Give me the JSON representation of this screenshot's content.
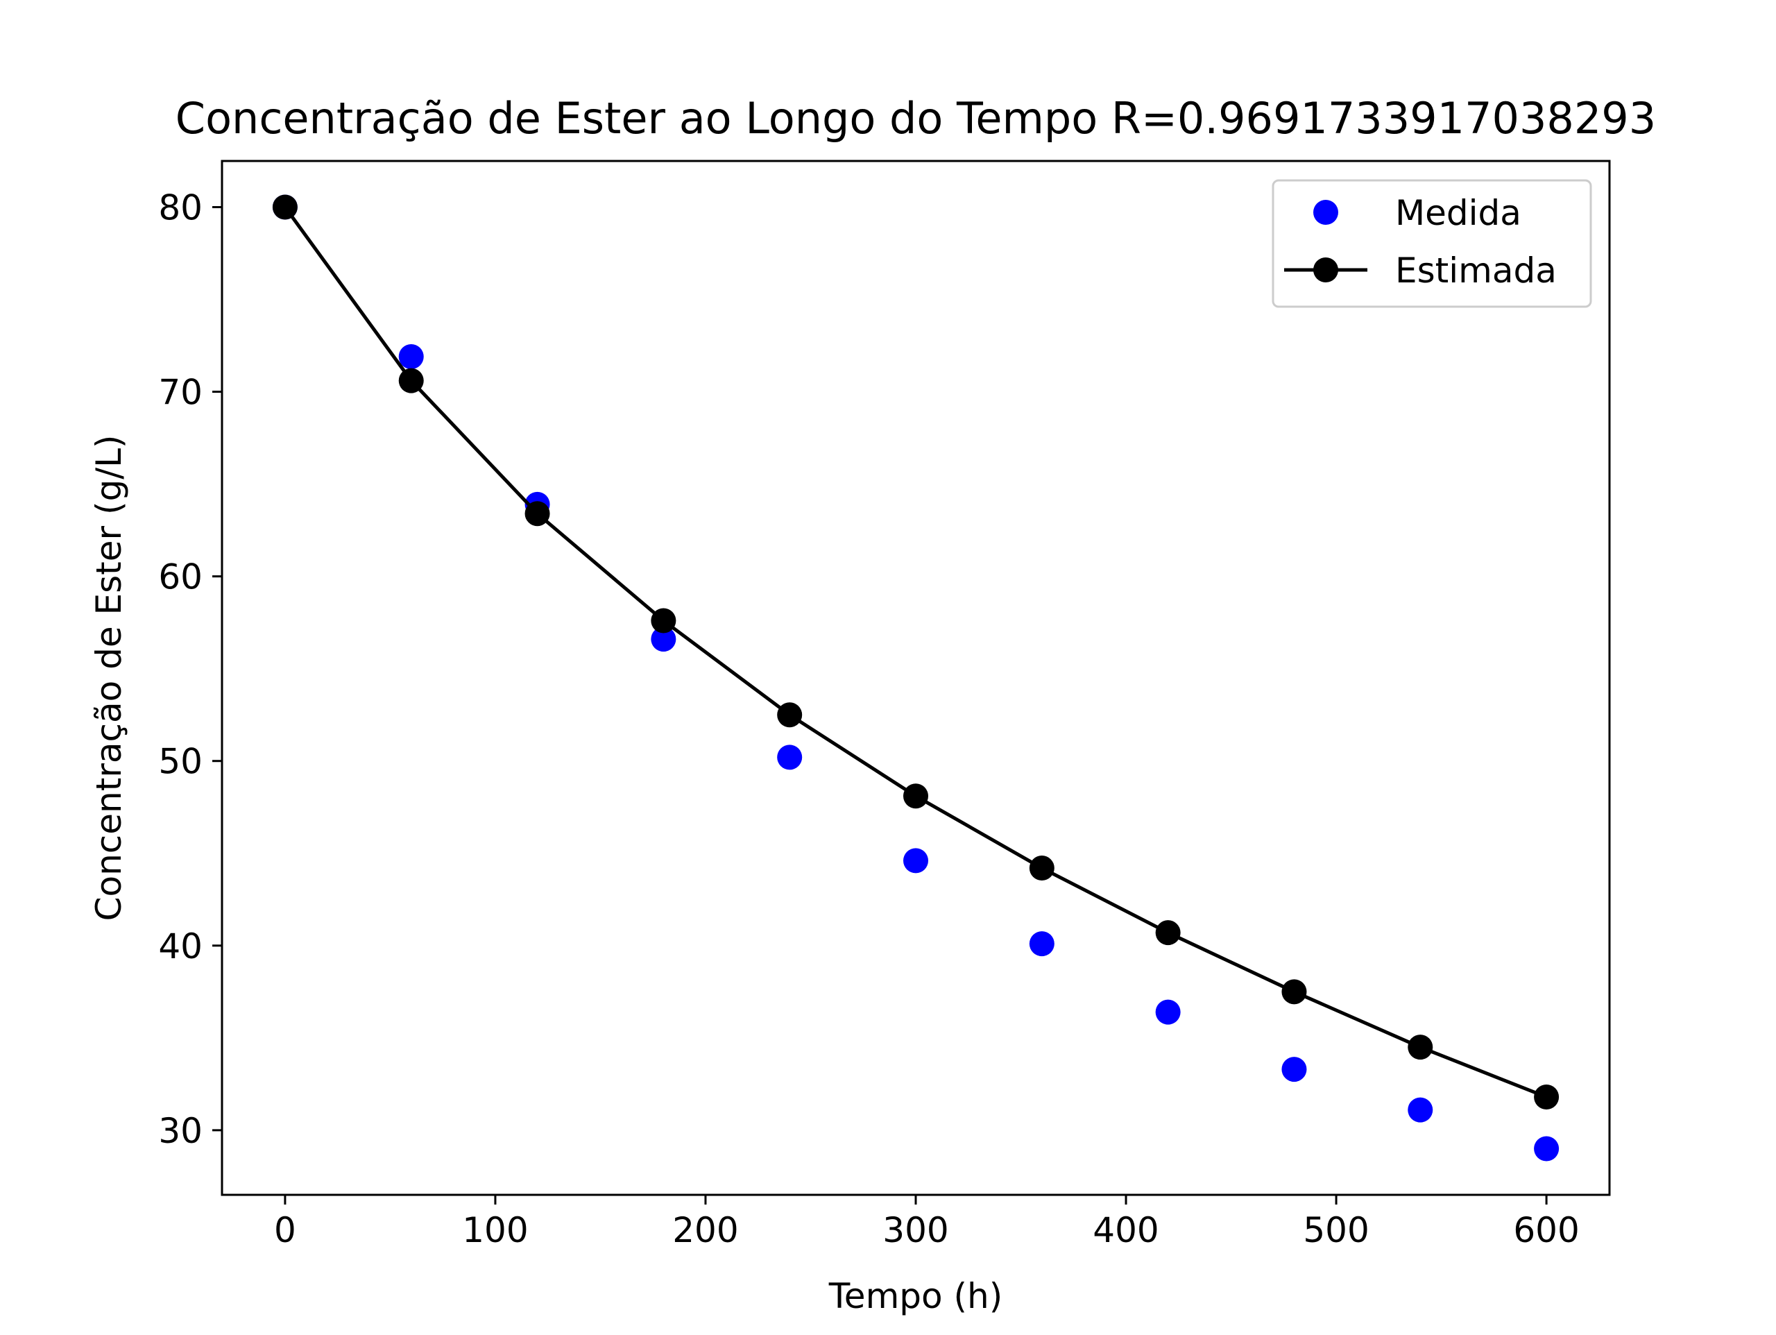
{
  "chart_data": {
    "type": "scatter",
    "title": "Concentração de Ester ao Longo do Tempo R=0.9691733917038293",
    "xlabel": "Tempo (h)",
    "ylabel": "Concentração de Ester (g/L)",
    "xlim": [
      -30,
      630
    ],
    "ylim": [
      26.5,
      82.5
    ],
    "x_ticks": [
      0,
      100,
      200,
      300,
      400,
      500,
      600
    ],
    "x_tick_labels": [
      "0",
      "100",
      "200",
      "300",
      "400",
      "500",
      "600"
    ],
    "y_ticks": [
      30,
      40,
      50,
      60,
      70,
      80
    ],
    "y_tick_labels": [
      "30",
      "40",
      "50",
      "60",
      "70",
      "80"
    ],
    "grid": false,
    "legend_position": "top-right",
    "series": [
      {
        "name": "Medida",
        "kind": "scatter",
        "color": "#0000ff",
        "x": [
          0,
          60,
          120,
          180,
          240,
          300,
          360,
          420,
          480,
          540,
          600
        ],
        "y": [
          80.0,
          71.9,
          63.9,
          56.6,
          50.2,
          44.6,
          40.1,
          36.4,
          33.3,
          31.1,
          29.0
        ]
      },
      {
        "name": "Estimada",
        "kind": "line-marker",
        "color": "#000000",
        "x": [
          0,
          60,
          120,
          180,
          240,
          300,
          360,
          420,
          480,
          540,
          600
        ],
        "y": [
          80.0,
          70.6,
          63.4,
          57.6,
          52.5,
          48.1,
          44.2,
          40.7,
          37.5,
          34.5,
          31.8
        ]
      }
    ]
  }
}
